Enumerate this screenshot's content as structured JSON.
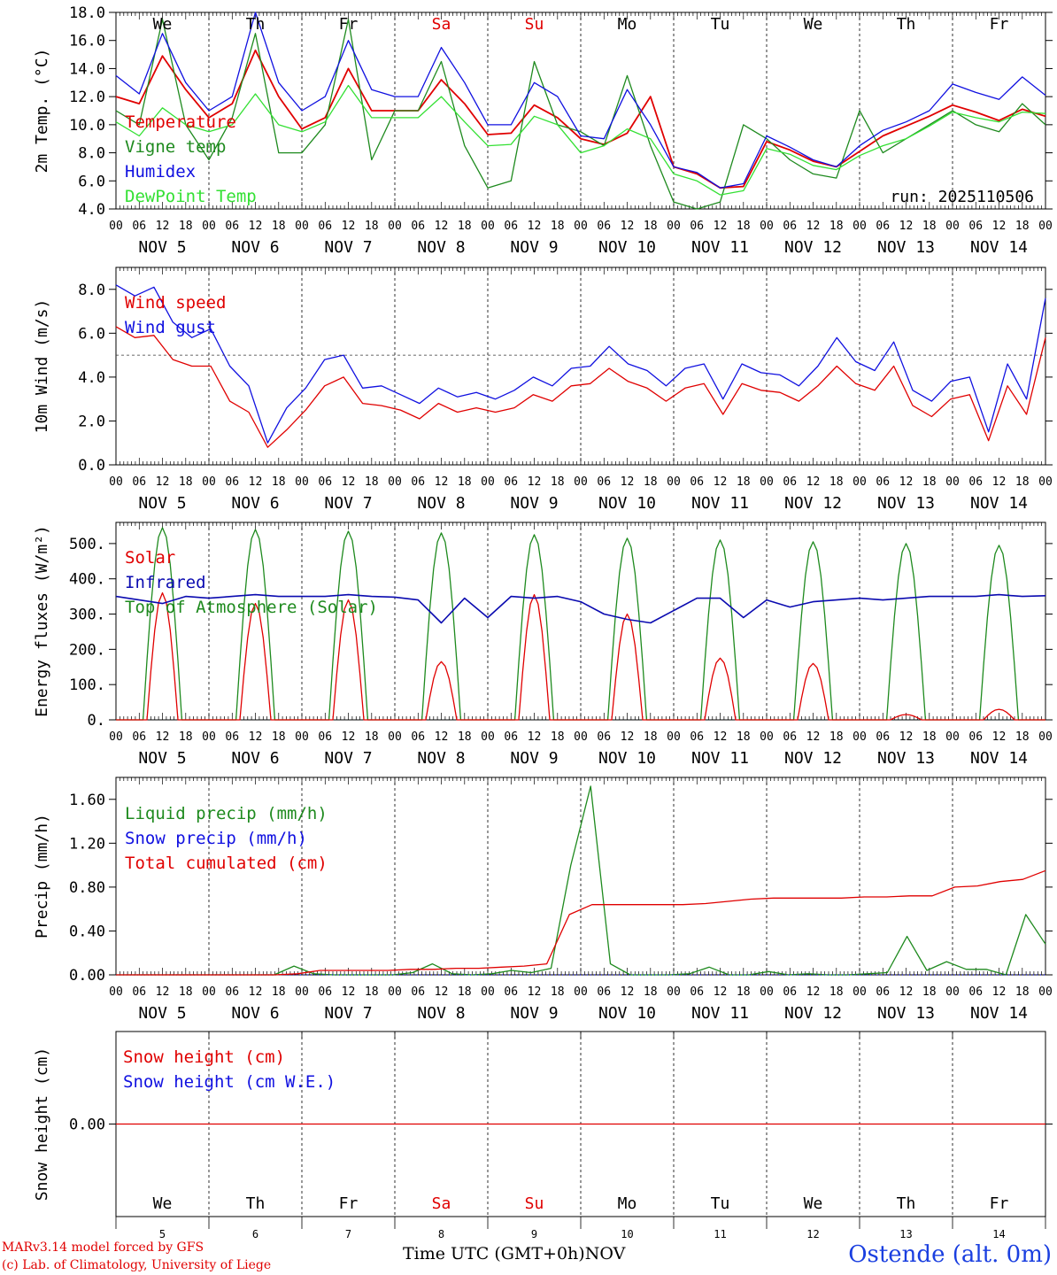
{
  "footer": {
    "model_line": "MARv3.14 model forced by GFS",
    "copyright_line": "(c) Lab. of Climatology, University of Liege",
    "x_axis_label": "Time UTC (GMT+0h)",
    "month_label": "NOV",
    "station": "Ostende (alt. 0m)"
  },
  "run_label": "run: 2025110506",
  "colors": {
    "red": "#e00000",
    "green": "#1e8a1e",
    "blue": "#1010e0",
    "lightgreen": "#33e033",
    "darkblue": "#0a0ab0"
  },
  "chart_data": [
    {
      "type": "line",
      "id": "temperature",
      "ylabel": "2m Temp. (°C)",
      "ylim": [
        4,
        18
      ],
      "yticks": [
        "4.0",
        "6.0",
        "8.0",
        "10.0",
        "12.0",
        "14.0",
        "16.0",
        "18.0"
      ],
      "day_labels": [
        "We",
        "Th",
        "Fr",
        "Sa",
        "Su",
        "Mo",
        "Tu",
        "We",
        "Th",
        "Fr"
      ],
      "weekend_days": [
        "Sa",
        "Su"
      ],
      "date_labels": [
        "NOV  5",
        "NOV  6",
        "NOV  7",
        "NOV  8",
        "NOV  9",
        "NOV 10",
        "NOV 11",
        "NOV 12",
        "NOV 13",
        "NOV 14"
      ],
      "hour_labels": [
        "00",
        "06",
        "12",
        "18"
      ],
      "x_start": "2025-11-05 00:00 UTC",
      "x_step_hours": 6,
      "series": [
        {
          "name": "Temperature",
          "color": "#e00000",
          "values": [
            12.0,
            11.5,
            14.9,
            12.5,
            10.5,
            11.5,
            15.3,
            12.0,
            9.7,
            10.5,
            14.0,
            11.0,
            11.0,
            11.0,
            13.2,
            11.5,
            9.3,
            9.4,
            11.4,
            10.5,
            9.0,
            8.6,
            9.4,
            12.0,
            7.0,
            6.5,
            5.5,
            5.6,
            8.8,
            8.2,
            7.4,
            7.0,
            8.1,
            9.2,
            9.9,
            10.6,
            11.4,
            10.9,
            10.3,
            11.1,
            10.6
          ]
        },
        {
          "name": "Vigne temp",
          "color": "#1e8a1e",
          "values": [
            11.0,
            10.0,
            17.5,
            10.0,
            7.5,
            10.5,
            16.5,
            8.0,
            8.0,
            10.0,
            17.5,
            7.5,
            11.0,
            11.0,
            14.5,
            8.5,
            5.5,
            6.0,
            14.5,
            10.0,
            9.5,
            8.5,
            13.5,
            8.5,
            4.5,
            4.0,
            4.5,
            10.0,
            9.0,
            7.5,
            6.5,
            6.2,
            11.0,
            8.0,
            9.0,
            10.0,
            11.0,
            10.0,
            9.5,
            11.5,
            10.0
          ]
        },
        {
          "name": "Humidex",
          "color": "#1010e0",
          "values": [
            13.5,
            12.2,
            16.5,
            13.0,
            11.0,
            12.0,
            18.0,
            13.0,
            11.0,
            12.0,
            16.0,
            12.5,
            12.0,
            12.0,
            15.5,
            13.0,
            10.0,
            10.0,
            13.0,
            12.0,
            9.2,
            9.0,
            12.5,
            10.0,
            7.0,
            6.6,
            5.5,
            5.8,
            9.2,
            8.4,
            7.5,
            7.0,
            8.5,
            9.6,
            10.2,
            11.0,
            12.9,
            12.3,
            11.8,
            13.4,
            12.1
          ]
        },
        {
          "name": "DewPoint Temp",
          "color": "#33e033",
          "values": [
            10.2,
            9.2,
            11.2,
            10.0,
            9.5,
            10.0,
            12.2,
            10.0,
            9.5,
            10.2,
            12.8,
            10.5,
            10.5,
            10.5,
            12.0,
            10.2,
            8.5,
            8.6,
            10.6,
            10.0,
            8.0,
            8.5,
            9.7,
            9.0,
            6.5,
            6.0,
            5.0,
            5.3,
            8.3,
            7.9,
            7.1,
            6.8,
            7.8,
            8.5,
            9.0,
            9.9,
            10.9,
            10.5,
            10.2,
            10.9,
            10.8
          ]
        }
      ]
    },
    {
      "type": "line",
      "id": "wind",
      "ylabel": "10m Wind (m/s)",
      "ylim": [
        0,
        9
      ],
      "yticks": [
        "0.0",
        "2.0",
        "4.0",
        "6.0",
        "8.0"
      ],
      "reference_line": 5.0,
      "date_labels": [
        "NOV  5",
        "NOV  6",
        "NOV  7",
        "NOV  8",
        "NOV  9",
        "NOV 10",
        "NOV 11",
        "NOV 12",
        "NOV 13",
        "NOV 14"
      ],
      "hour_labels": [
        "00",
        "06",
        "12",
        "18"
      ],
      "x_start": "2025-11-05 00:00 UTC",
      "x_step_hours": 6,
      "series": [
        {
          "name": "Wind speed",
          "color": "#e00000",
          "values": [
            6.3,
            5.8,
            5.9,
            4.8,
            4.5,
            4.5,
            2.9,
            2.4,
            0.8,
            1.6,
            2.5,
            3.6,
            4.0,
            2.8,
            2.7,
            2.5,
            2.1,
            2.8,
            2.4,
            2.6,
            2.4,
            2.6,
            3.2,
            2.9,
            3.6,
            3.7,
            4.4,
            3.8,
            3.5,
            2.9,
            3.5,
            3.7,
            2.3,
            3.7,
            3.4,
            3.3,
            2.9,
            3.6,
            4.5,
            3.7,
            3.4,
            4.5,
            2.7,
            2.2,
            3.0,
            3.2,
            1.1,
            3.6,
            2.3,
            5.8
          ]
        },
        {
          "name": "Wind gust",
          "color": "#1010e0",
          "values": [
            8.2,
            7.7,
            8.1,
            6.5,
            5.8,
            6.2,
            4.5,
            3.6,
            1.0,
            2.6,
            3.5,
            4.8,
            5.0,
            3.5,
            3.6,
            3.2,
            2.8,
            3.5,
            3.1,
            3.3,
            3.0,
            3.4,
            4.0,
            3.6,
            4.4,
            4.5,
            5.4,
            4.6,
            4.3,
            3.6,
            4.4,
            4.6,
            3.0,
            4.6,
            4.2,
            4.1,
            3.6,
            4.5,
            5.8,
            4.7,
            4.3,
            5.6,
            3.4,
            2.9,
            3.8,
            4.0,
            1.5,
            4.6,
            3.0,
            7.6
          ]
        }
      ]
    },
    {
      "type": "line",
      "id": "energy",
      "ylabel": "Energy fluxes (W/m²)",
      "ylim": [
        0,
        560
      ],
      "yticks": [
        "0.",
        "100.",
        "200.",
        "300.",
        "400.",
        "500."
      ],
      "date_labels": [
        "NOV  5",
        "NOV  6",
        "NOV  7",
        "NOV  8",
        "NOV  9",
        "NOV 10",
        "NOV 11",
        "NOV 12",
        "NOV 13",
        "NOV 14"
      ],
      "hour_labels": [
        "00",
        "06",
        "12",
        "18"
      ],
      "x_start": "2025-11-05 00:00 UTC",
      "x_step_hours": 1,
      "solar_peaks": [
        360,
        330,
        340,
        165,
        355,
        300,
        175,
        160,
        15,
        30
      ],
      "toa_peaks": [
        545,
        540,
        535,
        530,
        525,
        515,
        510,
        505,
        500,
        495
      ],
      "infrared_values": [
        350,
        340,
        330,
        350,
        345,
        350,
        355,
        350,
        350,
        350,
        355,
        350,
        348,
        340,
        275,
        345,
        290,
        350,
        345,
        350,
        335,
        300,
        285,
        275,
        310,
        345,
        345,
        290,
        340,
        320,
        335,
        340,
        345,
        340,
        345,
        350,
        350,
        350,
        355,
        350,
        352
      ],
      "series": [
        {
          "name": "Solar",
          "color": "#e00000"
        },
        {
          "name": "Infrared",
          "color": "#0a0ab0"
        },
        {
          "name": "Top of Atmosphere (Solar)",
          "color": "#1e8a1e"
        }
      ]
    },
    {
      "type": "line",
      "id": "precip",
      "ylabel": "Precip (mm/h)",
      "ylim": [
        0,
        1.8
      ],
      "yticks": [
        "0.00",
        "0.40",
        "0.80",
        "1.20",
        "1.60"
      ],
      "date_labels": [
        "NOV  5",
        "NOV  6",
        "NOV  7",
        "NOV  8",
        "NOV  9",
        "NOV 10",
        "NOV 11",
        "NOV 12",
        "NOV 13",
        "NOV 14"
      ],
      "hour_labels": [
        "00",
        "06",
        "12",
        "18"
      ],
      "x_start": "2025-11-05 00:00 UTC",
      "x_step_hours": 6,
      "series": [
        {
          "name": "Liquid precip (mm/h)",
          "color": "#1e8a1e",
          "values": [
            0,
            0,
            0,
            0,
            0,
            0,
            0,
            0,
            0,
            0.08,
            0.01,
            0,
            0,
            0,
            0,
            0.02,
            0.1,
            0.01,
            0,
            0.01,
            0.04,
            0.02,
            0.06,
            1.0,
            1.72,
            0.1,
            0,
            0,
            0,
            0.01,
            0.07,
            0,
            0,
            0.03,
            0,
            0.01,
            0,
            0,
            0.01,
            0.02,
            0.35,
            0.04,
            0.12,
            0.05,
            0.05,
            0,
            0.55,
            0.28
          ]
        },
        {
          "name": "Snow precip (mm/h)",
          "color": "#1010e0",
          "values": [
            0,
            0,
            0,
            0,
            0,
            0,
            0,
            0,
            0,
            0,
            0,
            0,
            0,
            0,
            0,
            0,
            0,
            0,
            0,
            0,
            0,
            0,
            0,
            0,
            0,
            0,
            0,
            0,
            0,
            0,
            0,
            0,
            0,
            0,
            0,
            0,
            0,
            0,
            0,
            0,
            0,
            0,
            0,
            0,
            0,
            0,
            0,
            0
          ]
        },
        {
          "name": "Total cumulated (cm)",
          "color": "#e00000",
          "values": [
            0,
            0,
            0,
            0,
            0,
            0,
            0,
            0,
            0.01,
            0.04,
            0.04,
            0.04,
            0.04,
            0.05,
            0.05,
            0.06,
            0.06,
            0.07,
            0.08,
            0.1,
            0.55,
            0.64,
            0.64,
            0.64,
            0.64,
            0.64,
            0.65,
            0.67,
            0.69,
            0.7,
            0.7,
            0.7,
            0.7,
            0.71,
            0.71,
            0.72,
            0.72,
            0.8,
            0.81,
            0.85,
            0.87,
            0.95
          ]
        }
      ]
    },
    {
      "type": "line",
      "id": "snow",
      "ylabel": "Snow height (cm)",
      "ylim": [
        -1,
        1
      ],
      "yticks": [
        "0.00"
      ],
      "bottom_day_labels": [
        "We",
        "Th",
        "Fr",
        "Sa",
        "Su",
        "Mo",
        "Tu",
        "We",
        "Th",
        "Fr"
      ],
      "bottom_date_numbers": [
        "5",
        "6",
        "7",
        "8",
        "9",
        "10",
        "11",
        "12",
        "13",
        "14"
      ],
      "series": [
        {
          "name": "Snow height (cm)",
          "color": "#e00000",
          "values": [
            0,
            0
          ]
        },
        {
          "name": "Snow height (cm W.E.)",
          "color": "#1010e0",
          "values": [
            0,
            0
          ]
        }
      ]
    }
  ]
}
